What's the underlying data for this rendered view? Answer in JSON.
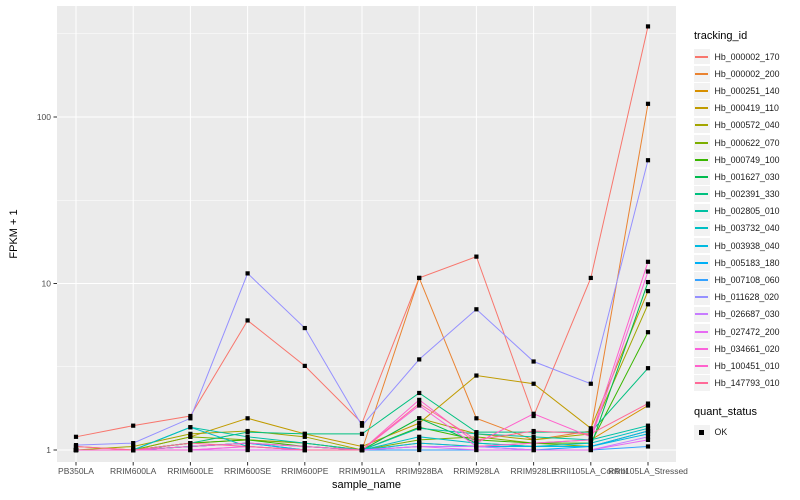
{
  "colors": {
    "panel_bg": "#EBEBEB",
    "grid": "#FFFFFF",
    "axis_text": "#4D4D4D",
    "tick_mark": "#333333",
    "point": "#000000",
    "legend_key_bg": "#F2F2F2"
  },
  "legend": {
    "tracking_title": "tracking_id",
    "quant_title": "quant_status",
    "quant_items": [
      {
        "label": "OK",
        "shape": "filled-square"
      }
    ]
  },
  "chart_data": {
    "type": "line",
    "title": "",
    "xlabel": "sample_name",
    "ylabel": "FPKM + 1",
    "y_scale": "log10",
    "y_ticks": [
      1,
      10,
      100
    ],
    "y_minor_gridlines": [
      3.162,
      31.62,
      316.2
    ],
    "ylim": [
      0.85,
      470
    ],
    "grid": true,
    "legend_position": "right",
    "point_shape": "filled-square",
    "categories": [
      "PB350LA",
      "RRIM600LA",
      "RRIM600LE",
      "RRIM600SE",
      "RRIM600PE",
      "RRIM901LA",
      "RRIM928BA",
      "RRIM928LA",
      "RRIM928LE",
      "RRII105LA_Control",
      "RRII105LA_Stressed"
    ],
    "series": [
      {
        "name": "Hb_000002_170",
        "color": "#F8766D",
        "values": [
          1.2,
          1.4,
          1.6,
          6.0,
          3.2,
          1.45,
          10.8,
          14.5,
          1.6,
          10.8,
          350
        ]
      },
      {
        "name": "Hb_000002_200",
        "color": "#EA8331",
        "values": [
          1.0,
          1.0,
          1.05,
          1.1,
          1.05,
          1.0,
          10.8,
          1.55,
          1.15,
          1.3,
          120
        ]
      },
      {
        "name": "Hb_000251_140",
        "color": "#D89000",
        "values": [
          1.05,
          1.0,
          1.1,
          1.15,
          1.1,
          1.0,
          1.1,
          1.05,
          1.1,
          1.15,
          1.85
        ]
      },
      {
        "name": "Hb_000419_110",
        "color": "#C09B00",
        "values": [
          1.0,
          1.0,
          1.2,
          1.55,
          1.25,
          1.05,
          1.45,
          2.8,
          2.5,
          1.35,
          9.0
        ]
      },
      {
        "name": "Hb_000572_040",
        "color": "#A3A500",
        "values": [
          1.0,
          1.05,
          1.25,
          1.3,
          1.2,
          1.0,
          1.55,
          1.25,
          1.15,
          1.25,
          7.5
        ]
      },
      {
        "name": "Hb_000622_070",
        "color": "#7CAE00",
        "values": [
          1.0,
          1.0,
          1.2,
          1.15,
          1.1,
          1.0,
          1.15,
          1.2,
          1.1,
          1.05,
          1.3
        ]
      },
      {
        "name": "Hb_000749_100",
        "color": "#39B600",
        "values": [
          1.0,
          1.0,
          1.1,
          1.15,
          1.05,
          1.0,
          1.37,
          1.15,
          1.1,
          1.1,
          5.1
        ]
      },
      {
        "name": "Hb_001627_030",
        "color": "#00BB4E",
        "values": [
          1.0,
          1.0,
          1.05,
          1.1,
          1.0,
          1.0,
          1.55,
          1.1,
          1.05,
          1.05,
          10.2
        ]
      },
      {
        "name": "Hb_002391_330",
        "color": "#00C07F",
        "values": [
          1.0,
          1.0,
          1.1,
          1.28,
          1.25,
          1.25,
          2.2,
          1.28,
          1.28,
          1.28,
          3.1
        ]
      },
      {
        "name": "Hb_002805_010",
        "color": "#00C1A3",
        "values": [
          1.0,
          1.0,
          1.37,
          1.2,
          1.1,
          1.0,
          1.35,
          1.25,
          1.2,
          1.15,
          1.4
        ]
      },
      {
        "name": "Hb_003732_040",
        "color": "#00BFC4",
        "values": [
          1.0,
          1.0,
          1.37,
          1.05,
          1.0,
          1.0,
          1.2,
          1.1,
          1.05,
          1.1,
          1.35
        ]
      },
      {
        "name": "Hb_003938_040",
        "color": "#00BAE0",
        "values": [
          1.0,
          1.0,
          1.05,
          1.1,
          1.05,
          1.0,
          1.1,
          1.05,
          1.05,
          1.05,
          1.25
        ]
      },
      {
        "name": "Hb_005183_180",
        "color": "#00B0F6",
        "values": [
          1.0,
          1.0,
          1.05,
          1.1,
          1.0,
          1.0,
          1.05,
          1.05,
          1.0,
          1.05,
          1.3
        ]
      },
      {
        "name": "Hb_007108_060",
        "color": "#35A2FF",
        "values": [
          1.0,
          1.0,
          1.0,
          1.0,
          1.0,
          1.0,
          1.0,
          1.0,
          1.0,
          1.0,
          1.05
        ]
      },
      {
        "name": "Hb_011628_020",
        "color": "#9590FF",
        "values": [
          1.07,
          1.1,
          1.55,
          11.5,
          5.4,
          1.4,
          3.5,
          7.0,
          3.4,
          2.5,
          55
        ]
      },
      {
        "name": "Hb_026687_030",
        "color": "#C77CFF",
        "values": [
          1.0,
          1.0,
          1.0,
          1.05,
          1.0,
          1.0,
          1.05,
          1.05,
          1.0,
          1.0,
          1.2
        ]
      },
      {
        "name": "Hb_027472_200",
        "color": "#E76BF3",
        "values": [
          1.0,
          1.0,
          1.0,
          1.0,
          1.0,
          1.0,
          1.05,
          1.0,
          1.0,
          1.0,
          1.15
        ]
      },
      {
        "name": "Hb_034661_020",
        "color": "#FA62DB",
        "values": [
          1.0,
          1.0,
          1.0,
          1.05,
          1.0,
          1.0,
          1.85,
          1.05,
          1.1,
          1.15,
          11.8
        ]
      },
      {
        "name": "Hb_100451_010",
        "color": "#FF61CC",
        "values": [
          1.0,
          1.0,
          1.05,
          1.1,
          1.05,
          1.0,
          2.0,
          1.1,
          1.65,
          1.2,
          13.5
        ]
      },
      {
        "name": "Hb_147793_010",
        "color": "#FF6A98",
        "values": [
          1.05,
          1.0,
          1.1,
          1.05,
          1.0,
          1.0,
          1.9,
          1.15,
          1.3,
          1.25,
          1.9
        ]
      }
    ]
  }
}
